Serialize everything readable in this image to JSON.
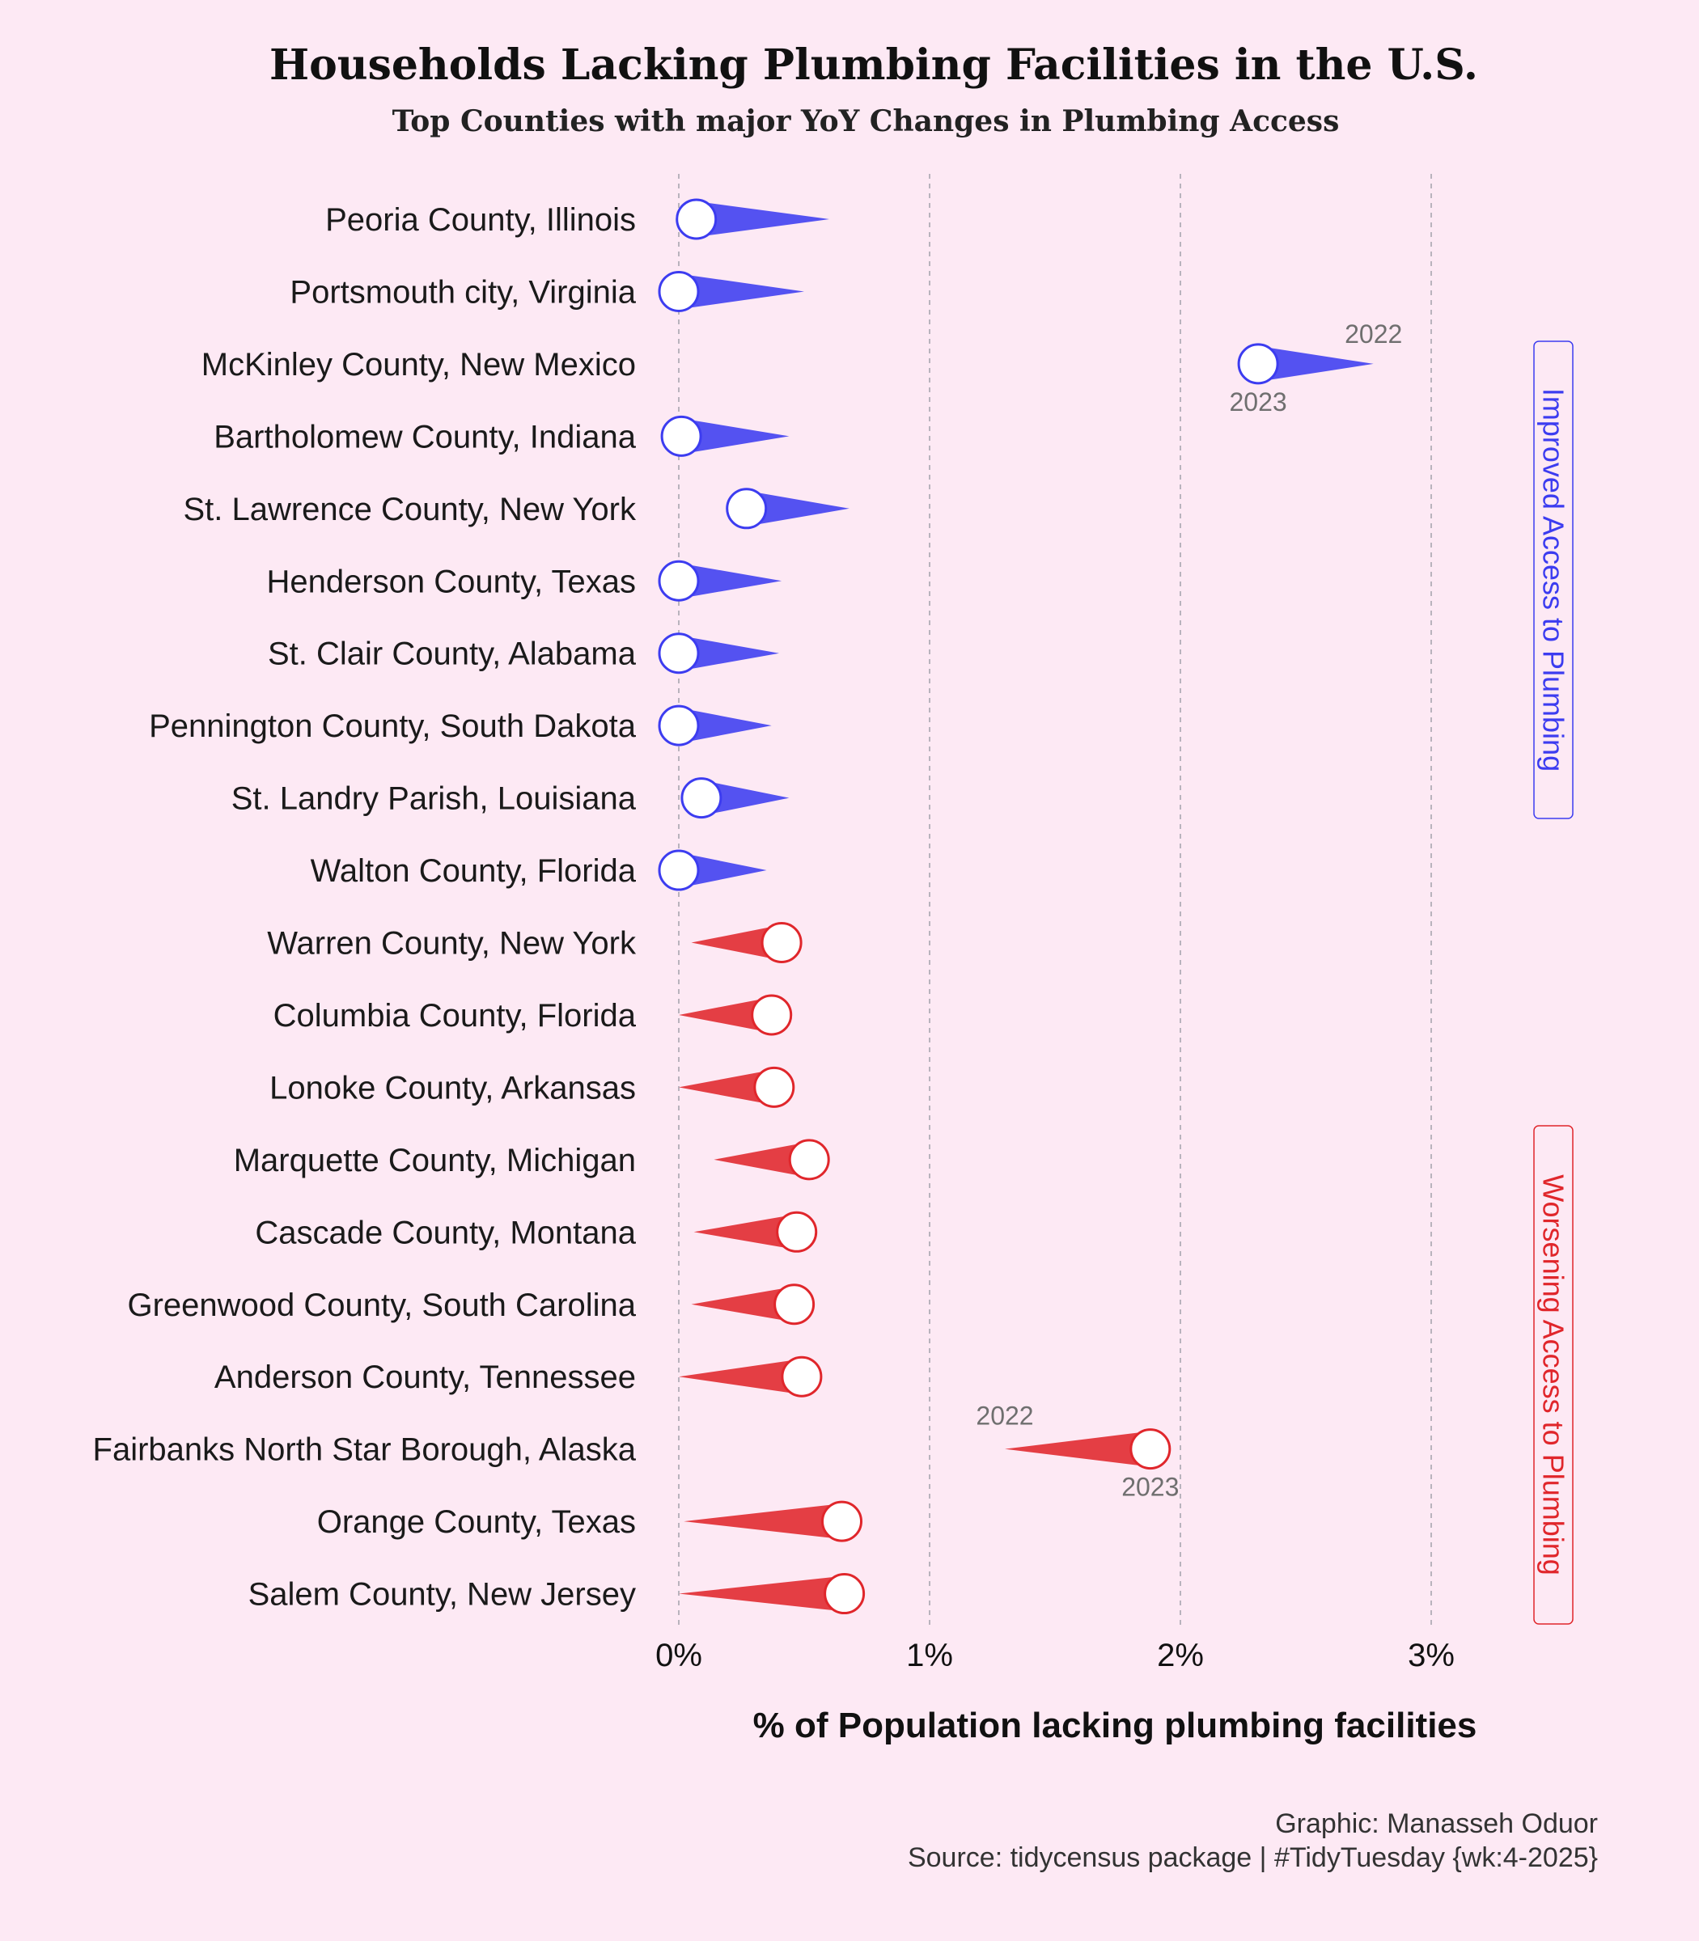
{
  "title": "Households Lacking Plumbing Facilities in the U.S.",
  "subtitle": "Top Counties with major YoY Changes in Plumbing Access",
  "caption_line1": "Graphic: Manasseh Oduor",
  "caption_line2": "Source: tidycensus package | #TidyTuesday {wk:4-2025}",
  "colors": {
    "improved": "#3c3cf0",
    "worsened": "#e0262b",
    "background": "#fde9f4",
    "marker_fill": "#ffffff"
  },
  "chart_data": {
    "type": "dumbbell",
    "title": "Households Lacking Plumbing Facilities in the U.S.",
    "subtitle": "Top Counties with major YoY Changes in Plumbing Access",
    "xlabel": "% of Population lacking plumbing facilities",
    "ylabel": "",
    "xlim": [
      0,
      3
    ],
    "x_ticks": [
      0,
      1,
      2,
      3
    ],
    "x_tick_labels": [
      "0%",
      "1%",
      "2%",
      "3%"
    ],
    "grid": "vertical dashed",
    "year_labels": [
      "2022",
      "2023"
    ],
    "groups": [
      {
        "label": "Improved Access to Plumbing",
        "color": "#3c3cf0"
      },
      {
        "label": "Worsening Access to Plumbing",
        "color": "#e0262b"
      }
    ],
    "rows": [
      {
        "county": "Peoria County, Illinois",
        "y2022": 0.6,
        "y2023": 0.07,
        "group": "improved"
      },
      {
        "county": "Portsmouth city, Virginia",
        "y2022": 0.5,
        "y2023": 0.0,
        "group": "improved"
      },
      {
        "county": "McKinley County, New Mexico",
        "y2022": 2.77,
        "y2023": 2.31,
        "group": "improved",
        "annotated": true
      },
      {
        "county": "Bartholomew County, Indiana",
        "y2022": 0.44,
        "y2023": 0.01,
        "group": "improved"
      },
      {
        "county": "St. Lawrence County, New York",
        "y2022": 0.68,
        "y2023": 0.27,
        "group": "improved"
      },
      {
        "county": "Henderson County, Texas",
        "y2022": 0.41,
        "y2023": 0.0,
        "group": "improved"
      },
      {
        "county": "St. Clair County, Alabama",
        "y2022": 0.4,
        "y2023": 0.0,
        "group": "improved"
      },
      {
        "county": "Pennington County, South Dakota",
        "y2022": 0.37,
        "y2023": 0.0,
        "group": "improved"
      },
      {
        "county": "St. Landry Parish, Louisiana",
        "y2022": 0.44,
        "y2023": 0.09,
        "group": "improved"
      },
      {
        "county": "Walton County, Florida",
        "y2022": 0.35,
        "y2023": 0.0,
        "group": "improved"
      },
      {
        "county": "Warren County, New York",
        "y2022": 0.05,
        "y2023": 0.41,
        "group": "worsened"
      },
      {
        "county": "Columbia County, Florida",
        "y2022": 0.0,
        "y2023": 0.37,
        "group": "worsened"
      },
      {
        "county": "Lonoke County, Arkansas",
        "y2022": 0.0,
        "y2023": 0.38,
        "group": "worsened"
      },
      {
        "county": "Marquette County, Michigan",
        "y2022": 0.14,
        "y2023": 0.52,
        "group": "worsened"
      },
      {
        "county": "Cascade County, Montana",
        "y2022": 0.06,
        "y2023": 0.47,
        "group": "worsened"
      },
      {
        "county": "Greenwood County, South Carolina",
        "y2022": 0.05,
        "y2023": 0.46,
        "group": "worsened"
      },
      {
        "county": "Anderson County, Tennessee",
        "y2022": 0.0,
        "y2023": 0.49,
        "group": "worsened"
      },
      {
        "county": "Fairbanks North Star Borough, Alaska",
        "y2022": 1.3,
        "y2023": 1.88,
        "group": "worsened",
        "annotated": true
      },
      {
        "county": "Orange County, Texas",
        "y2022": 0.02,
        "y2023": 0.65,
        "group": "worsened"
      },
      {
        "county": "Salem County, New Jersey",
        "y2022": 0.0,
        "y2023": 0.66,
        "group": "worsened"
      }
    ]
  }
}
